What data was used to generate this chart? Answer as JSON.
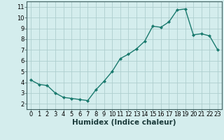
{
  "x": [
    0,
    1,
    2,
    3,
    4,
    5,
    6,
    7,
    8,
    9,
    10,
    11,
    12,
    13,
    14,
    15,
    16,
    17,
    18,
    19,
    20,
    21,
    22,
    23
  ],
  "y": [
    4.2,
    3.8,
    3.7,
    3.0,
    2.6,
    2.5,
    2.4,
    2.3,
    3.3,
    4.1,
    5.0,
    6.2,
    6.6,
    7.1,
    7.8,
    9.2,
    9.1,
    9.6,
    10.7,
    10.8,
    8.4,
    8.5,
    8.3,
    7.0
  ],
  "line_color": "#1a7a6e",
  "marker": "D",
  "marker_size": 2.0,
  "line_width": 1.0,
  "grid_color": "#aecece",
  "xlabel": "Humidex (Indice chaleur)",
  "xlabel_fontsize": 7.5,
  "xlim": [
    -0.5,
    23.5
  ],
  "ylim": [
    1.5,
    11.5
  ],
  "yticks": [
    2,
    3,
    4,
    5,
    6,
    7,
    8,
    9,
    10,
    11
  ],
  "xticks": [
    0,
    1,
    2,
    3,
    4,
    5,
    6,
    7,
    8,
    9,
    10,
    11,
    12,
    13,
    14,
    15,
    16,
    17,
    18,
    19,
    20,
    21,
    22,
    23
  ],
  "tick_fontsize": 6.0,
  "axis_bg_color": "#d4eded",
  "outer_bg_color": "#d4eded",
  "spine_color": "#406060"
}
